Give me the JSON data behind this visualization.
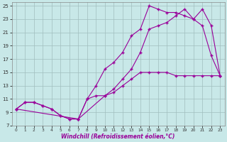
{
  "xlabel": "Windchill (Refroidissement éolien,°C)",
  "background_color": "#c8e8e8",
  "grid_color": "#a0bebe",
  "line_color": "#990099",
  "marker": "+",
  "xlim": [
    -0.5,
    23.5
  ],
  "ylim": [
    7,
    25.5
  ],
  "xticks": [
    0,
    1,
    2,
    3,
    4,
    5,
    6,
    7,
    8,
    9,
    10,
    11,
    12,
    13,
    14,
    15,
    16,
    17,
    18,
    19,
    20,
    21,
    22,
    23
  ],
  "yticks": [
    7,
    9,
    11,
    13,
    15,
    17,
    19,
    21,
    23,
    25
  ],
  "line1_x": [
    0,
    1,
    2,
    3,
    4,
    5,
    6,
    7,
    8,
    9,
    10,
    11,
    12,
    13,
    14,
    15,
    16,
    17,
    18,
    19,
    20,
    21,
    22,
    23
  ],
  "line1_y": [
    9.5,
    10.5,
    10.5,
    10.0,
    9.5,
    8.5,
    8.0,
    8.0,
    11.0,
    11.5,
    11.5,
    12.0,
    13.0,
    14.0,
    15.0,
    15.0,
    15.0,
    15.0,
    14.5,
    14.5,
    14.5,
    14.5,
    14.5,
    14.5
  ],
  "line2_x": [
    0,
    1,
    2,
    3,
    4,
    5,
    6,
    7,
    8,
    9,
    10,
    11,
    12,
    13,
    14,
    15,
    16,
    17,
    18,
    19,
    20,
    21,
    22,
    23
  ],
  "line2_y": [
    9.5,
    10.5,
    10.5,
    10.0,
    9.5,
    8.5,
    8.0,
    8.0,
    11.0,
    13.0,
    15.5,
    16.5,
    18.0,
    20.5,
    21.5,
    25.0,
    24.5,
    24.0,
    24.0,
    23.5,
    23.0,
    22.0,
    17.5,
    14.5
  ],
  "line3_x": [
    0,
    7,
    10,
    11,
    12,
    13,
    14,
    15,
    16,
    17,
    18,
    19,
    20,
    21,
    22,
    23
  ],
  "line3_y": [
    9.5,
    8.0,
    11.5,
    12.5,
    14.0,
    15.5,
    18.0,
    21.5,
    22.0,
    22.5,
    23.5,
    24.5,
    23.0,
    24.5,
    22.0,
    14.5
  ]
}
